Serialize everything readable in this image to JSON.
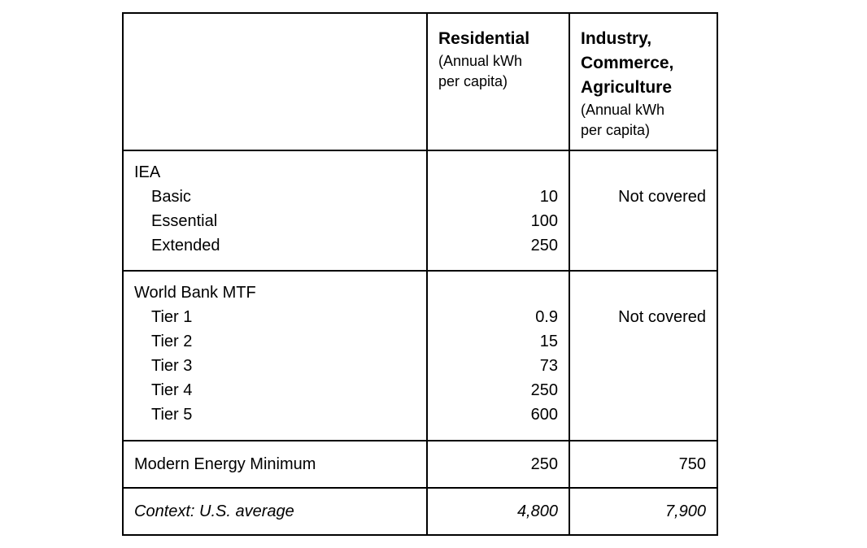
{
  "table": {
    "background_color": "#ffffff",
    "border_color": "#000000",
    "text_color": "#000000",
    "header": {
      "residential": {
        "title": "Residential",
        "subtitle_lines": [
          "(Annual kWh",
          "per capita)"
        ]
      },
      "industry": {
        "title_lines": [
          "Industry,",
          "Commerce,",
          "Agriculture"
        ],
        "subtitle_lines": [
          "(Annual kWh",
          "per capita)"
        ]
      }
    },
    "rows": [
      {
        "name": "IEA",
        "items": [
          "Basic",
          "Essential",
          "Extended"
        ],
        "residential": [
          "10",
          "100",
          "250"
        ],
        "industry": "Not covered"
      },
      {
        "name": "World Bank MTF",
        "items": [
          "Tier 1",
          "Tier 2",
          "Tier 3",
          "Tier 4",
          "Tier 5"
        ],
        "residential": [
          "0.9",
          "15",
          "73",
          "250",
          "600"
        ],
        "industry": "Not covered"
      },
      {
        "name": "Modern Energy Minimum",
        "residential": "250",
        "industry": "750"
      },
      {
        "name": "Context: U.S. average",
        "residential": "4,800",
        "industry": "7,900",
        "emphasis": "italic"
      }
    ]
  }
}
